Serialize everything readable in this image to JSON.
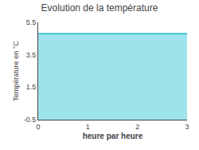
{
  "chart_data": {
    "type": "area",
    "title": "Evolution de la température",
    "x_label": "heure par heure",
    "y_label": "Température en °C",
    "x": [
      0,
      3
    ],
    "values": [
      4.8,
      4.8
    ],
    "color": "#3ec8d8",
    "xlim": [
      0,
      3
    ],
    "xticks": [
      0,
      1,
      2,
      3
    ],
    "ylim": [
      -0.5,
      5.5
    ],
    "yticks": [
      -0.5,
      1.5,
      3.5,
      5.5
    ],
    "grid": false
  }
}
